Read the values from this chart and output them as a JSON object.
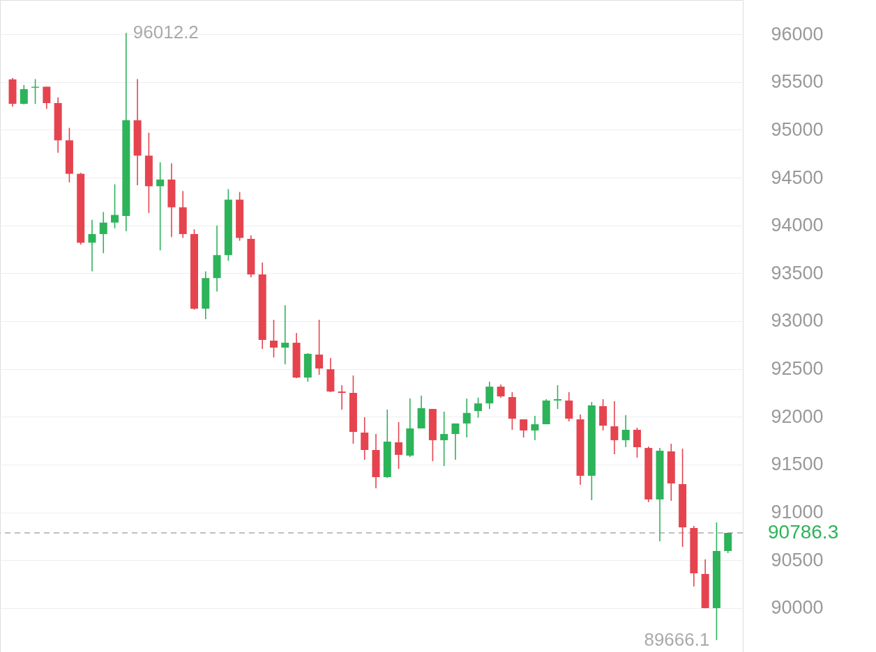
{
  "chart_data": {
    "type": "candlestick",
    "categories": [
      null,
      null,
      null,
      null,
      null,
      null,
      null,
      null,
      null,
      null,
      null,
      null,
      null,
      null,
      null,
      null,
      null,
      null,
      null,
      null,
      null,
      null,
      null,
      null,
      null,
      null,
      null,
      null,
      null,
      null,
      null,
      null,
      null,
      null,
      null,
      null,
      null,
      null,
      null,
      null,
      null,
      null,
      null,
      null,
      null,
      null,
      null,
      null,
      null,
      null,
      null,
      null,
      null,
      null,
      null,
      null,
      null,
      null,
      null,
      null,
      null,
      null,
      null,
      null
    ],
    "ohlc": [
      [
        95527,
        95541,
        95243,
        95272
      ],
      [
        95272,
        95468,
        95265,
        95425
      ],
      [
        95440,
        95530,
        95270,
        95450
      ],
      [
        95450,
        95450,
        95220,
        95280
      ],
      [
        95280,
        95340,
        94760,
        94890
      ],
      [
        94890,
        95020,
        94450,
        94540
      ],
      [
        94540,
        94550,
        93800,
        93820
      ],
      [
        93820,
        94060,
        93520,
        93910
      ],
      [
        93910,
        94140,
        93710,
        94030
      ],
      [
        94030,
        94430,
        93970,
        94110
      ],
      [
        94100,
        96012.2,
        93940,
        95100
      ],
      [
        95100,
        95530,
        94420,
        94730
      ],
      [
        94730,
        94970,
        94130,
        94410
      ],
      [
        94410,
        94660,
        93740,
        94480
      ],
      [
        94480,
        94650,
        93880,
        94190
      ],
      [
        94190,
        94360,
        93870,
        93910
      ],
      [
        93910,
        93960,
        93120,
        93130
      ],
      [
        93130,
        93520,
        93020,
        93450
      ],
      [
        93450,
        94000,
        93310,
        93690
      ],
      [
        93690,
        94380,
        93630,
        94270
      ],
      [
        94270,
        94350,
        93840,
        93870
      ],
      [
        93860,
        93895,
        93459,
        93488
      ],
      [
        93488,
        93612,
        92709,
        92803
      ],
      [
        92796,
        93014,
        92621,
        92723
      ],
      [
        92723,
        93167,
        92548,
        92774
      ],
      [
        92774,
        92876,
        92403,
        92410
      ],
      [
        92410,
        92665,
        92366,
        92658
      ],
      [
        92650,
        93014,
        92439,
        92505
      ],
      [
        92497,
        92614,
        92257,
        92264
      ],
      [
        92264,
        92330,
        92075,
        92250
      ],
      [
        92250,
        92432,
        91718,
        91842
      ],
      [
        91835,
        91995,
        91551,
        91653
      ],
      [
        91653,
        91820,
        91252,
        91369
      ],
      [
        91369,
        92075,
        91361,
        91740
      ],
      [
        91733,
        91944,
        91456,
        91602
      ],
      [
        91594,
        92192,
        91580,
        91878
      ],
      [
        91878,
        92221,
        91878,
        92090
      ],
      [
        92082,
        92082,
        91536,
        91755
      ],
      [
        91755,
        92053,
        91485,
        91820
      ],
      [
        91820,
        91930,
        91550,
        91930
      ],
      [
        91930,
        92190,
        91784,
        92040
      ],
      [
        92060,
        92200,
        91990,
        92140
      ],
      [
        92140,
        92366,
        92082,
        92315
      ],
      [
        92315,
        92337,
        92199,
        92213
      ],
      [
        92206,
        92257,
        91864,
        91980
      ],
      [
        91973,
        91973,
        91784,
        91857
      ],
      [
        91857,
        92009,
        91755,
        91922
      ],
      [
        91922,
        92184,
        91922,
        92170
      ],
      [
        92170,
        92330,
        92082,
        92184
      ],
      [
        92170,
        92257,
        91951,
        91980
      ],
      [
        91973,
        92024,
        91289,
        91383
      ],
      [
        91383,
        92155,
        91128,
        92118
      ],
      [
        92111,
        92184,
        91857,
        91907
      ],
      [
        91900,
        92162,
        91609,
        91755
      ],
      [
        91755,
        92017,
        91682,
        91864
      ],
      [
        91864,
        91886,
        91573,
        91682
      ],
      [
        91674,
        91689,
        91107,
        91136
      ],
      [
        91136,
        91674,
        90699,
        91645
      ],
      [
        91638,
        91718,
        91121,
        91303
      ],
      [
        91296,
        91667,
        90640,
        90844
      ],
      [
        90837,
        90859,
        90225,
        90364
      ],
      [
        90357,
        90510,
        89998,
        90000
      ],
      [
        90000,
        90896,
        89666.1,
        90597
      ],
      [
        90597,
        90786.3,
        90575,
        90786.3
      ]
    ],
    "colors": [
      "#e5444f",
      "#2db35a",
      "#2db35a",
      "#e5444f",
      "#e5444f",
      "#e5444f",
      "#e5444f",
      "#2db35a",
      "#2db35a",
      "#2db35a",
      "#2db35a",
      "#e5444f",
      "#e5444f",
      "#2db35a",
      "#e5444f",
      "#e5444f",
      "#e5444f",
      "#2db35a",
      "#2db35a",
      "#2db35a",
      "#e5444f",
      "#e5444f",
      "#e5444f",
      "#e5444f",
      "#2db35a",
      "#e5444f",
      "#2db35a",
      "#e5444f",
      "#e5444f",
      "#e5444f",
      "#e5444f",
      "#e5444f",
      "#e5444f",
      "#2db35a",
      "#e5444f",
      "#2db35a",
      "#2db35a",
      "#e5444f",
      "#2db35a",
      "#2db35a",
      "#2db35a",
      "#2db35a",
      "#2db35a",
      "#e5444f",
      "#e5444f",
      "#e5444f",
      "#2db35a",
      "#2db35a",
      "#2db35a",
      "#e5444f",
      "#e5444f",
      "#2db35a",
      "#e5444f",
      "#e5444f",
      "#2db35a",
      "#e5444f",
      "#e5444f",
      "#2db35a",
      "#e5444f",
      "#e5444f",
      "#e5444f",
      "#e5444f",
      "#2db35a",
      "#2db35a"
    ],
    "ylim": [
      89541,
      96357
    ],
    "yticks": [
      90000,
      90500,
      91000,
      91500,
      92000,
      92500,
      93000,
      93500,
      94000,
      94500,
      95000,
      95500,
      96000
    ],
    "grid": "y",
    "ref_lines": [
      {
        "axis": "y",
        "value": 90786.3,
        "label": "90786.3",
        "color": "#aaaaaa",
        "line_style": "dashed"
      }
    ],
    "annotations": [
      "96012.2",
      "89666.1"
    ]
  }
}
